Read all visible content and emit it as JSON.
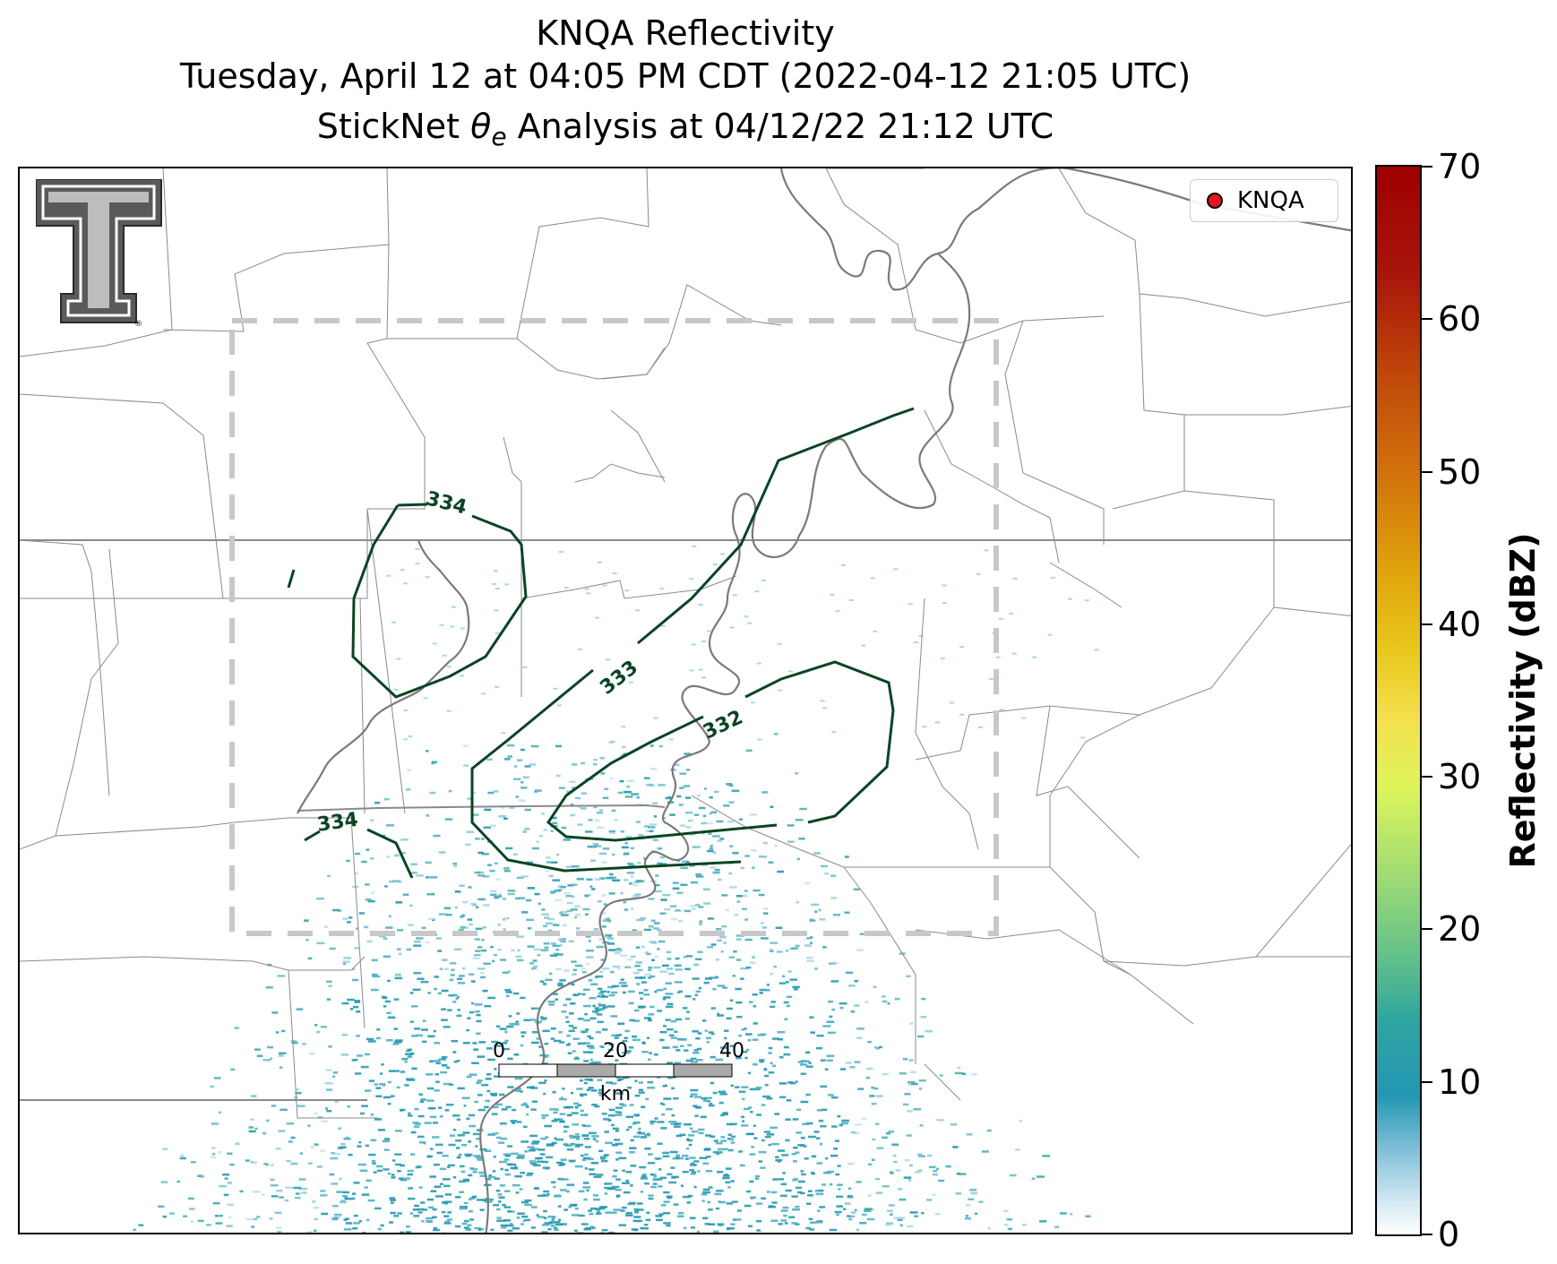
{
  "titles": {
    "line1": "KNQA Reflectivity",
    "line2": "Tuesday, April 12 at 04:05 PM CDT (2022-04-12 21:05 UTC)",
    "line3_pre": "StickNet ",
    "line3_sym": "θ",
    "line3_sub": "e",
    "line3_post": " Analysis at 04/12/22 21:12 UTC"
  },
  "legend": {
    "marker_color": "#e8141b",
    "label": "KNQA"
  },
  "colorbar": {
    "label": "Reflectivity (dBZ)",
    "ticks": [
      "70",
      "60",
      "50",
      "40",
      "30",
      "20",
      "10",
      "0"
    ],
    "range": [
      0,
      70
    ]
  },
  "contours": {
    "color": "#0a4423",
    "labels": [
      "334",
      "333",
      "332",
      "334"
    ]
  },
  "scale_bar": {
    "ticks": [
      "0",
      "20",
      "40"
    ],
    "unit": "km"
  },
  "logo": {
    "name": "Texas Tech T logo",
    "symbol": "®"
  }
}
